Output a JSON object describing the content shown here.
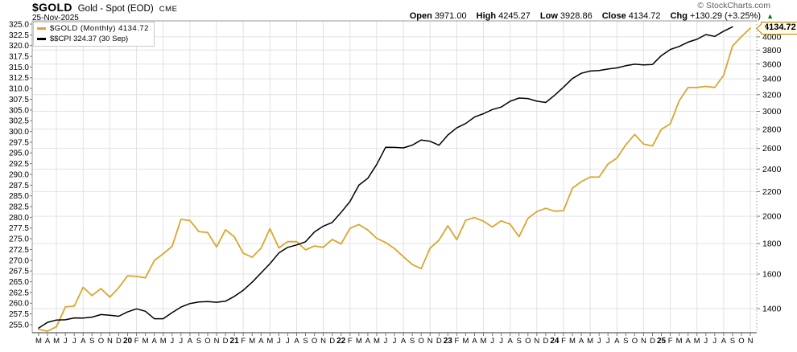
{
  "header": {
    "symbol": "$GOLD",
    "description": "Gold - Spot (EOD)",
    "exchange": "CME",
    "date": "25-Nov-2025",
    "copyright": "© StockCharts.com",
    "quote": [
      {
        "label": "Open",
        "value": "3971.00"
      },
      {
        "label": "High",
        "value": "4245.27"
      },
      {
        "label": "Low",
        "value": "3928.86"
      },
      {
        "label": "Close",
        "value": "4134.72"
      },
      {
        "label": "Chg",
        "value": "+130.29 (+3.25%)"
      }
    ],
    "chg_icon": "▲"
  },
  "legend": {
    "series1": "$GOLD (Monthly) 4134.72",
    "series2": "$$CPI 324.37 (30 Sep)"
  },
  "price_tag": "4134.72",
  "colors": {
    "gold": "#D9A62F",
    "black": "#000000",
    "grid": "#E2E2E2",
    "tick": "#777777",
    "frame": "#999999",
    "frame_bottom": "#333333",
    "up_green": "#007A00",
    "tag_border": "#B8860B",
    "tag_fill": "#FFFBEA",
    "copyright_gray": "#5E5E5E"
  },
  "chart_data": {
    "type": "line",
    "title": "$GOLD Gold - Spot (EOD) CME",
    "x_start": "Mar 2019",
    "x_end": "Nov 2025",
    "x_months": [
      "M",
      "A",
      "M",
      "J",
      "J",
      "A",
      "S",
      "O",
      "N",
      "D",
      "20",
      "F",
      "M",
      "A",
      "M",
      "J",
      "J",
      "A",
      "S",
      "O",
      "N",
      "D",
      "21",
      "F",
      "M",
      "A",
      "M",
      "J",
      "J",
      "A",
      "S",
      "O",
      "N",
      "D",
      "22",
      "F",
      "M",
      "A",
      "M",
      "J",
      "J",
      "A",
      "S",
      "O",
      "N",
      "D",
      "23",
      "F",
      "M",
      "A",
      "M",
      "J",
      "J",
      "A",
      "S",
      "O",
      "N",
      "D",
      "24",
      "F",
      "M",
      "A",
      "M",
      "J",
      "J",
      "A",
      "S",
      "O",
      "N",
      "D",
      "25",
      "F",
      "M",
      "A",
      "M",
      "J",
      "J",
      "A",
      "S",
      "O",
      "N"
    ],
    "left_axis": {
      "min": 255.0,
      "max": 325.0,
      "step": 2.5,
      "scale": "linear",
      "series": "$$CPI"
    },
    "right_axis": {
      "ticks": [
        4000,
        3800,
        3600,
        3400,
        3200,
        3000,
        2800,
        2600,
        2400,
        2200,
        2000,
        1800,
        1600,
        1400
      ],
      "scale": "log",
      "series": "$GOLD",
      "last_price": 4134.72
    },
    "grid": {
      "vertical_every_months": 3,
      "horizontal_at_right_ticks": true
    },
    "series": [
      {
        "name": "gold-monthly",
        "label": "$GOLD (Monthly)",
        "axis": "right",
        "color": "#D9A62F",
        "width": 1.8,
        "values": [
          1292.3,
          1283.4,
          1305.5,
          1409.5,
          1413.8,
          1520.4,
          1472.4,
          1512.8,
          1463.9,
          1517.3,
          1589.2,
          1585.7,
          1577.2,
          1686.5,
          1730.3,
          1780.9,
          1975.9,
          1967.8,
          1885.8,
          1878.8,
          1776.9,
          1898.4,
          1847.7,
          1734.0,
          1707.7,
          1769.1,
          1906.9,
          1770.1,
          1814.2,
          1813.6,
          1757.0,
          1783.4,
          1774.5,
          1829.2,
          1797.2,
          1909.0,
          1937.4,
          1896.9,
          1837.4,
          1807.3,
          1765.9,
          1711.0,
          1660.6,
          1633.6,
          1768.5,
          1824.0,
          1928.4,
          1826.9,
          1969.3,
          1990.0,
          1962.7,
          1919.4,
          1965.1,
          1940.0,
          1848.6,
          1983.9,
          2036.4,
          2062.9,
          2039.8,
          2044.3,
          2229.9,
          2286.3,
          2327.3,
          2326.8,
          2447.6,
          2503.4,
          2634.6,
          2744.0,
          2643.2,
          2624.5,
          2798.4,
          2857.8,
          3123.6,
          3288.7,
          3289.3,
          3303.1,
          3289.9,
          3447.9,
          3859.0,
          4002.9,
          4134.72
        ]
      },
      {
        "name": "cpi",
        "label": "$$CPI",
        "axis": "left",
        "color": "#000000",
        "width": 1.5,
        "values": [
          254.2,
          255.55,
          256.09,
          256.14,
          256.57,
          256.56,
          256.76,
          257.35,
          257.21,
          256.97,
          257.97,
          258.68,
          258.12,
          256.39,
          256.39,
          257.8,
          259.1,
          259.92,
          260.28,
          260.39,
          260.23,
          260.47,
          261.58,
          263.01,
          264.88,
          267.05,
          269.2,
          271.7,
          273.0,
          273.57,
          274.31,
          276.59,
          277.95,
          278.8,
          281.15,
          283.72,
          287.5,
          289.11,
          292.3,
          296.31,
          296.28,
          296.17,
          296.81,
          298.01,
          297.71,
          296.8,
          299.17,
          300.84,
          301.84,
          303.36,
          304.13,
          305.11,
          305.69,
          307.03,
          307.79,
          307.67,
          307.05,
          306.75,
          308.42,
          310.33,
          312.33,
          313.55,
          314.07,
          314.18,
          314.54,
          314.8,
          315.3,
          315.66,
          315.49,
          315.61,
          317.67,
          319.08,
          319.8,
          320.8,
          321.47,
          322.56,
          322.13,
          323.36,
          324.37
        ]
      }
    ]
  }
}
